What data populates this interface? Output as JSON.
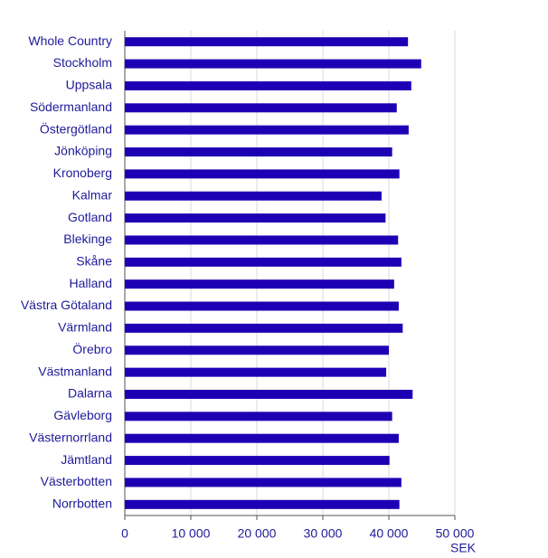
{
  "chart_data": {
    "type": "barh",
    "categories": [
      "Whole Country",
      "Stockholm",
      "Uppsala",
      "Södermanland",
      "Östergötland",
      "Jönköping",
      "Kronoberg",
      "Kalmar",
      "Gotland",
      "Blekinge",
      "Skåne",
      "Halland",
      "Västra Götaland",
      "Värmland",
      "Örebro",
      "Västmanland",
      "Dalarna",
      "Gävleborg",
      "Västernorrland",
      "Jämtland",
      "Västerbotten",
      "Norrbotten"
    ],
    "values": [
      42900,
      44900,
      43400,
      41200,
      43000,
      40500,
      41600,
      38900,
      39500,
      41400,
      41900,
      40800,
      41500,
      42100,
      40000,
      39600,
      43600,
      40500,
      41500,
      40100,
      41900,
      41600
    ],
    "color": "#1e00b4",
    "x_label": "SEK",
    "xlim": [
      0,
      50000
    ],
    "xticks": [
      0,
      {
        "value": 10000,
        "label": "10 000"
      },
      {
        "value": 20000,
        "label": "20 000"
      },
      {
        "value": 30000,
        "label": "30 000"
      },
      {
        "value": 40000,
        "label": "40 000"
      },
      {
        "value": 50000,
        "label": "50 000"
      }
    ],
    "grid": true
  }
}
